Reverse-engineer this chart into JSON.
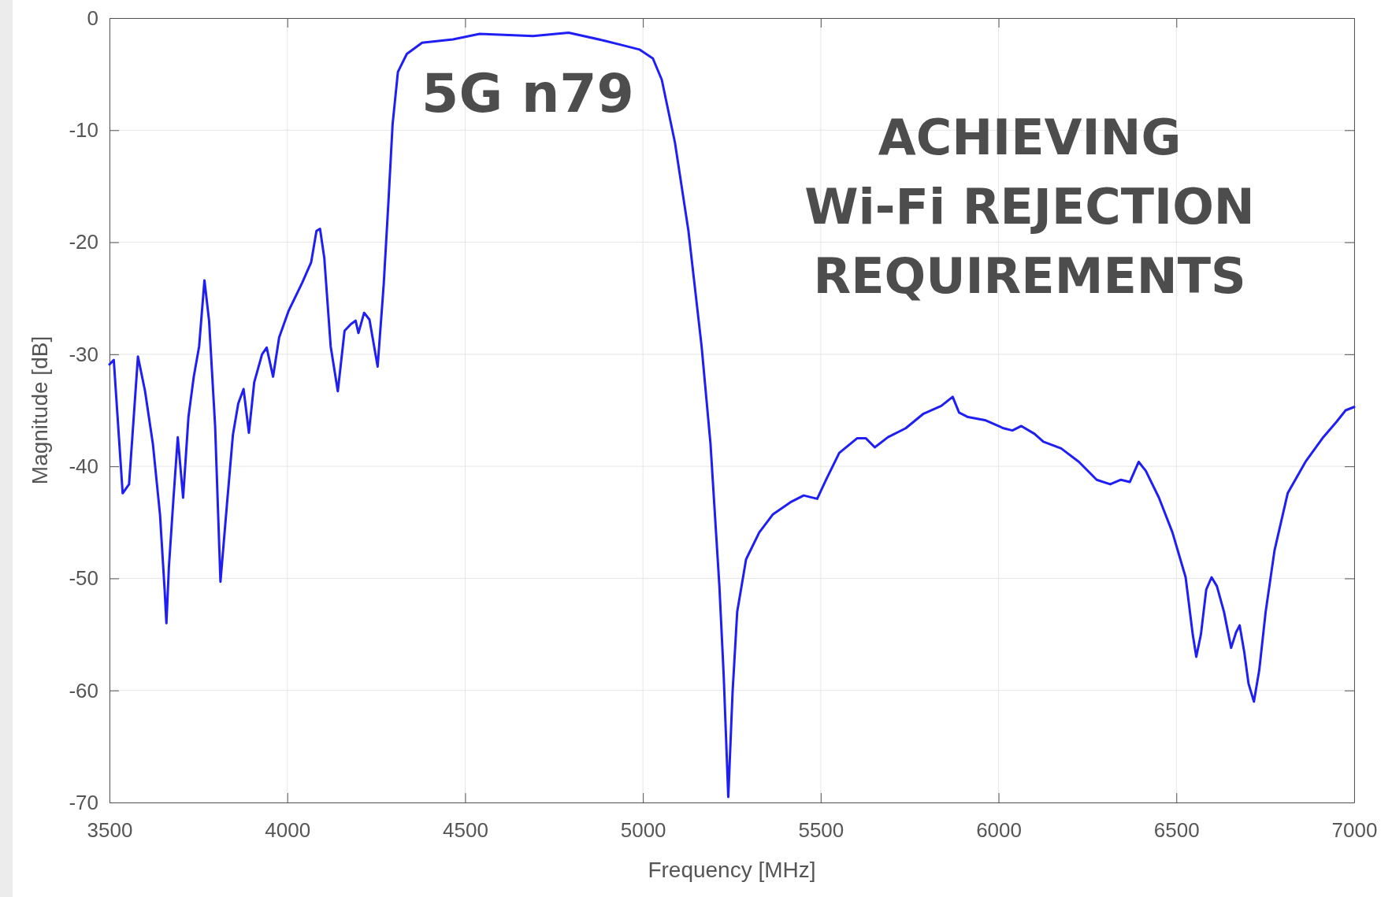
{
  "chart_data": {
    "type": "line",
    "xlabel": "Frequency [MHz]",
    "ylabel": "Magnitude [dB]",
    "xlim": [
      3500,
      7000
    ],
    "xticks": [
      3500,
      4000,
      4500,
      5000,
      5500,
      6000,
      6500,
      7000
    ],
    "ylim": [
      -70,
      0
    ],
    "yticks": [
      -70,
      -60,
      -50,
      -40,
      -30,
      -20,
      -10,
      0
    ],
    "grid": true,
    "marker": "none",
    "line_style": "solid",
    "series": [
      {
        "color": "#1f1ff5",
        "x": [
          3500,
          3512,
          3537,
          3555,
          3580,
          3600,
          3622,
          3642,
          3655,
          3660,
          3667,
          3680,
          3692,
          3707,
          3722,
          3737,
          3752,
          3767,
          3780,
          3797,
          3812,
          3830,
          3847,
          3862,
          3877,
          3892,
          3907,
          3929,
          3942,
          3960,
          3977,
          4004,
          4042,
          4067,
          4082,
          4092,
          4104,
          4122,
          4142,
          4161,
          4179,
          4192,
          4200,
          4216,
          4231,
          4254,
          4271,
          4284,
          4296,
          4311,
          4336,
          4379,
          4466,
          4541,
          4691,
          4791,
          4890,
          4940,
          4990,
          5028,
          5053,
          5090,
          5128,
          5165,
          5190,
          5215,
          5227,
          5240,
          5252,
          5265,
          5290,
          5327,
          5365,
          5415,
          5452,
          5490,
          5515,
          5552,
          5602,
          5627,
          5652,
          5689,
          5739,
          5789,
          5839,
          5871,
          5889,
          5914,
          5964,
          6014,
          6039,
          6064,
          6101,
          6126,
          6176,
          6226,
          6276,
          6314,
          6344,
          6369,
          6394,
          6414,
          6451,
          6489,
          6526,
          6546,
          6556,
          6569,
          6584,
          6599,
          6614,
          6634,
          6654,
          6668,
          6678,
          6691,
          6703,
          6718,
          6733,
          6751,
          6776,
          6813,
          6863,
          6913,
          6951,
          6976,
          7000
        ],
        "values": [
          -30.9,
          -30.5,
          -42.4,
          -41.6,
          -30.2,
          -33.3,
          -38,
          -44.3,
          -51,
          -54,
          -49,
          -42.8,
          -37.4,
          -42.8,
          -35.6,
          -32,
          -29.3,
          -23.4,
          -27,
          -36.4,
          -50.3,
          -43.5,
          -37.2,
          -34.4,
          -33.1,
          -37,
          -32.5,
          -30,
          -29.4,
          -32,
          -28.5,
          -26.1,
          -23.6,
          -21.8,
          -19,
          -18.8,
          -21.4,
          -29.3,
          -33.3,
          -27.9,
          -27.3,
          -27,
          -28.1,
          -26.3,
          -26.9,
          -31.1,
          -23.8,
          -16.6,
          -9.5,
          -4.8,
          -3.2,
          -2.2,
          -1.9,
          -1.4,
          -1.6,
          -1.3,
          -2,
          -2.4,
          -2.8,
          -3.6,
          -5.5,
          -11.1,
          -19,
          -29.3,
          -38,
          -50.7,
          -58.6,
          -69.5,
          -60.2,
          -53,
          -48.3,
          -45.9,
          -44.3,
          -43.2,
          -42.6,
          -42.9,
          -41.2,
          -38.8,
          -37.5,
          -37.5,
          -38.3,
          -37.4,
          -36.6,
          -35.3,
          -34.6,
          -33.8,
          -35.2,
          -35.6,
          -35.9,
          -36.6,
          -36.8,
          -36.4,
          -37.1,
          -37.8,
          -38.4,
          -39.6,
          -41.2,
          -41.6,
          -41.2,
          -41.4,
          -39.6,
          -40.4,
          -42.8,
          -45.9,
          -49.9,
          -55,
          -57,
          -55,
          -51,
          -49.9,
          -50.7,
          -53,
          -56.2,
          -54.8,
          -54.2,
          -56.6,
          -59.4,
          -61,
          -58.2,
          -53,
          -47.5,
          -42.4,
          -39.6,
          -37.4,
          -36,
          -35,
          -34.7
        ]
      }
    ],
    "annotations": [
      "5G n79",
      "ACHIEVING\nWi-Fi REJECTION\nREQUIREMENTS"
    ]
  }
}
